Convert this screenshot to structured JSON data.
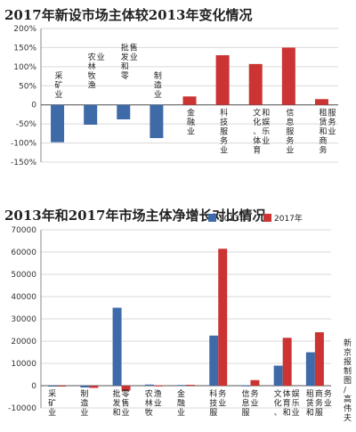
{
  "chart_data": [
    {
      "type": "bar",
      "title": "2017年新设市场主体较2013年变化情况",
      "categories": [
        "采矿业",
        "农林牧渔业",
        "批发和零售业",
        "制造业",
        "金融业",
        "科技服务业",
        "文化、体育和娱乐业",
        "信息服务业",
        "租赁和商务服务业"
      ],
      "values": [
        -98,
        -52,
        -38,
        -87,
        22,
        130,
        107,
        150,
        15
      ],
      "ylim": [
        -150,
        200
      ],
      "yticks": [
        "-150%",
        "-100%",
        "-50%",
        "0",
        "50%",
        "100%",
        "150%",
        "200%"
      ],
      "colors": {
        "negative": "#3f6aa8",
        "positive": "#cc3333"
      },
      "grid": true
    },
    {
      "type": "bar",
      "title": "2013年和2017年市场主体净增长对比情况",
      "categories": [
        "采矿业",
        "制造业",
        "批发和零售业",
        "农林牧渔业",
        "金融业",
        "科技服务业",
        "信息服务业",
        "文化、体育和娱乐业",
        "租赁和商务服务业"
      ],
      "series": [
        {
          "name": "2013年",
          "color": "#3f6aa8",
          "values": [
            -200,
            -800,
            35000,
            500,
            300,
            22500,
            100,
            9000,
            15000
          ]
        },
        {
          "name": "2017年",
          "color": "#cc3333",
          "values": [
            -100,
            -1000,
            -2200,
            100,
            400,
            61500,
            2500,
            21500,
            24000
          ]
        }
      ],
      "ylim": [
        -10000,
        70000
      ],
      "yticks": [
        "-10000",
        "0",
        "10000",
        "20000",
        "30000",
        "40000",
        "50000",
        "60000",
        "70000"
      ],
      "legend": "top-right",
      "grid": true
    }
  ],
  "credit": "新京报制图/高伟夫"
}
